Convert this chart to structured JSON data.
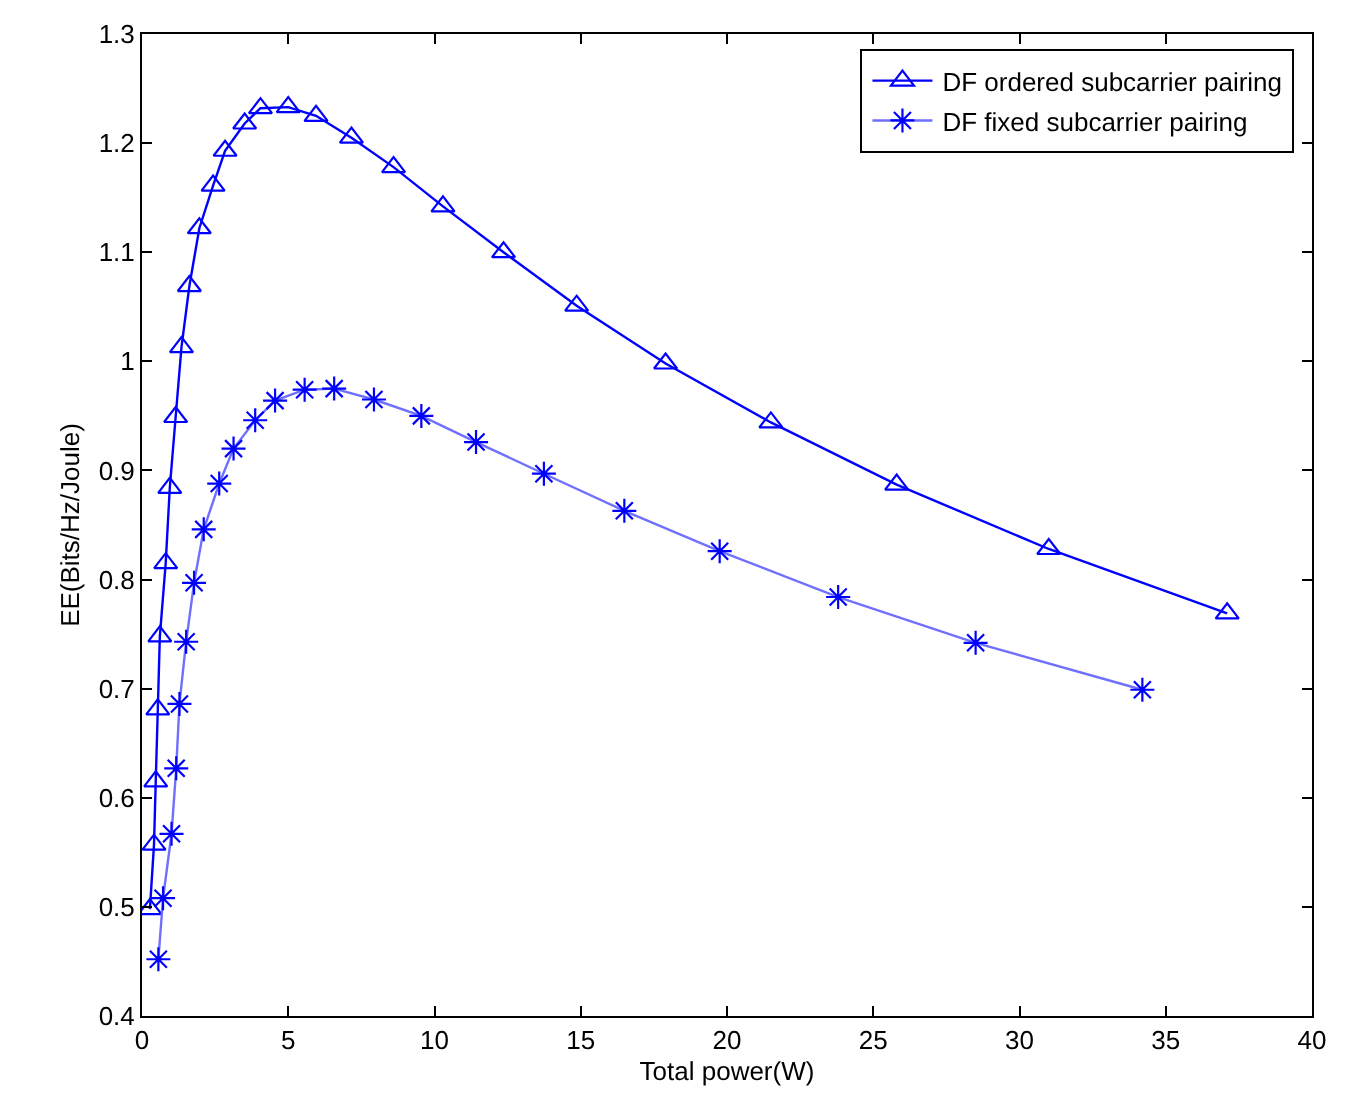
{
  "chart_data": {
    "type": "line",
    "xlabel": "Total power(W)",
    "ylabel": "EE(Bits/Hz/Joule)",
    "xlim": [
      0,
      40
    ],
    "xticks": [
      0,
      5,
      10,
      15,
      20,
      25,
      30,
      35,
      40
    ],
    "ylim": [
      0.4,
      1.3
    ],
    "yticks": [
      0.4,
      0.5,
      0.6,
      0.7,
      0.8,
      0.9,
      1,
      1.1,
      1.2,
      1.3
    ],
    "legend": "top right",
    "series": [
      {
        "name": "DF ordered subcarrier pairing",
        "color": "#0000ff",
        "marker": "triangle",
        "x": [
          0.27,
          0.41,
          0.47,
          0.54,
          0.61,
          0.81,
          0.95,
          1.15,
          1.35,
          1.62,
          1.96,
          2.43,
          2.84,
          3.51,
          4.05,
          5.0,
          5.95,
          7.16,
          8.6,
          10.29,
          12.36,
          14.86,
          17.9,
          21.5,
          25.8,
          31.0,
          37.1
        ],
        "values": [
          0.498,
          0.557,
          0.615,
          0.681,
          0.748,
          0.815,
          0.884,
          0.949,
          1.013,
          1.069,
          1.122,
          1.161,
          1.193,
          1.218,
          1.232,
          1.233,
          1.225,
          1.205,
          1.178,
          1.142,
          1.1,
          1.051,
          0.998,
          0.944,
          0.887,
          0.828,
          0.769
        ]
      },
      {
        "name": "DF fixed subcarrier pairing",
        "color": "#7070ff",
        "marker": "cross",
        "x": [
          0.56,
          0.72,
          1.01,
          1.17,
          1.28,
          1.51,
          1.78,
          2.11,
          2.64,
          3.13,
          3.87,
          4.55,
          5.56,
          6.57,
          7.93,
          9.55,
          11.42,
          13.74,
          16.49,
          19.75,
          23.8,
          28.5,
          34.2
        ],
        "values": [
          0.452,
          0.508,
          0.567,
          0.627,
          0.686,
          0.743,
          0.797,
          0.846,
          0.888,
          0.92,
          0.946,
          0.964,
          0.974,
          0.975,
          0.965,
          0.95,
          0.926,
          0.897,
          0.863,
          0.826,
          0.784,
          0.742,
          0.699
        ]
      }
    ]
  }
}
